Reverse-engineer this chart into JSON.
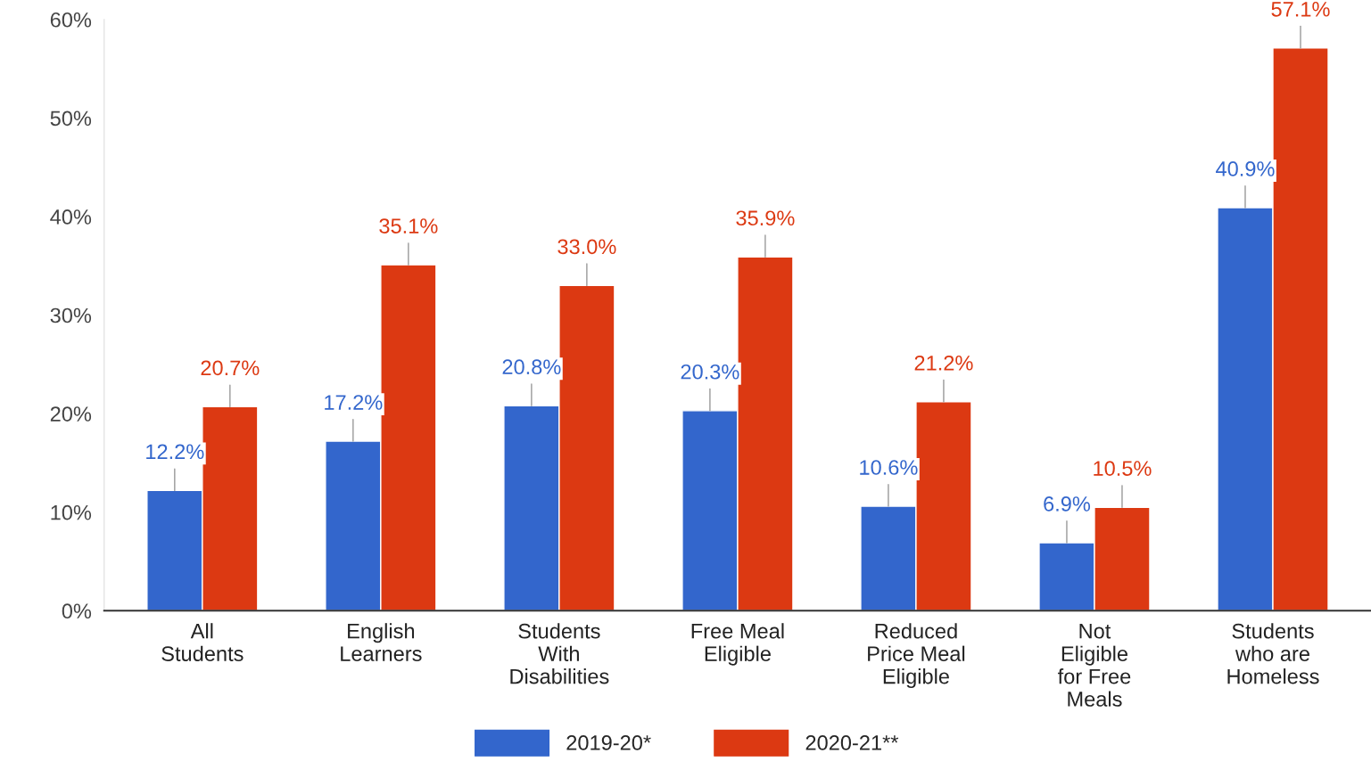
{
  "chart_data": {
    "type": "bar",
    "categories": [
      "All Students",
      "English Learners",
      "Students With Disabilities",
      "Free Meal Eligible",
      "Reduced Price Meal Eligible",
      "Not Eligible for Free Meals",
      "Students who are Homeless"
    ],
    "series": [
      {
        "name": "2019-20*",
        "color": "#3366cc",
        "values": [
          12.2,
          17.2,
          20.8,
          20.3,
          10.6,
          6.9,
          40.9
        ],
        "value_labels": [
          "12.2%",
          "17.2%",
          "20.8%",
          "20.3%",
          "10.6%",
          "6.9%",
          "40.9%"
        ]
      },
      {
        "name": "2020-21**",
        "color": "#dc3912",
        "values": [
          20.7,
          35.1,
          33.0,
          35.9,
          21.2,
          10.5,
          57.1
        ],
        "value_labels": [
          "20.7%",
          "35.1%",
          "33.0%",
          "35.9%",
          "21.2%",
          "10.5%",
          "57.1%"
        ]
      }
    ],
    "ylim": [
      0,
      60
    ],
    "yticks": [
      {
        "value": 0,
        "label": "0%"
      },
      {
        "value": 10,
        "label": "10%"
      },
      {
        "value": 20,
        "label": "20%"
      },
      {
        "value": 30,
        "label": "30%"
      },
      {
        "value": 40,
        "label": "40%"
      },
      {
        "value": 50,
        "label": "50%"
      },
      {
        "value": 60,
        "label": "60%"
      }
    ],
    "grid": false,
    "legend": "bottom"
  }
}
